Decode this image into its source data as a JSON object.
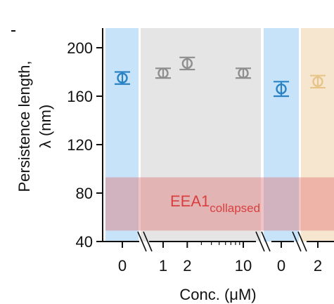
{
  "chart_data": {
    "type": "scatter",
    "ylabel_line1": "Persistence length,",
    "ylabel_line2": "λ (nm)",
    "xlabel": "Conc. (μM)",
    "ylim": [
      40,
      220
    ],
    "yticks": [
      "200",
      "160",
      "120",
      "80",
      "40"
    ],
    "ytick_values": [
      200,
      160,
      120,
      80,
      40
    ],
    "xticks": [
      "0",
      "1",
      "2",
      "10",
      "0",
      "2"
    ],
    "xtick_segments": [
      "blue",
      "gray",
      "gray",
      "gray",
      "blue2",
      "orange"
    ],
    "segments": [
      {
        "key": "blue",
        "color": "#c7e3fa",
        "marker": "#2a83c4"
      },
      {
        "key": "gray",
        "color": "#e5e5e5",
        "marker": "#8e8e8e"
      },
      {
        "key": "blue2",
        "color": "#c7e3fa",
        "marker": "#2a83c4"
      },
      {
        "key": "orange",
        "color": "#f6e6cf",
        "marker": "#e7c58a"
      }
    ],
    "points": [
      {
        "segment": "blue",
        "x": 0,
        "y": 175,
        "err": 5
      },
      {
        "segment": "gray",
        "x": 1,
        "y": 179,
        "err": 4
      },
      {
        "segment": "gray",
        "x": 2,
        "y": 187,
        "err": 5
      },
      {
        "segment": "gray",
        "x": 10,
        "y": 179,
        "err": 4
      },
      {
        "segment": "blue2",
        "x": 0,
        "y": 166,
        "err": 6
      },
      {
        "segment": "orange",
        "x": 2,
        "y": 172,
        "err": 5
      }
    ],
    "band": {
      "ymin": 49,
      "ymax": 93,
      "color": "#e07070"
    },
    "band_label": "EEA1",
    "band_label_sub": "collapsed",
    "band_label_color": "#d84040"
  }
}
